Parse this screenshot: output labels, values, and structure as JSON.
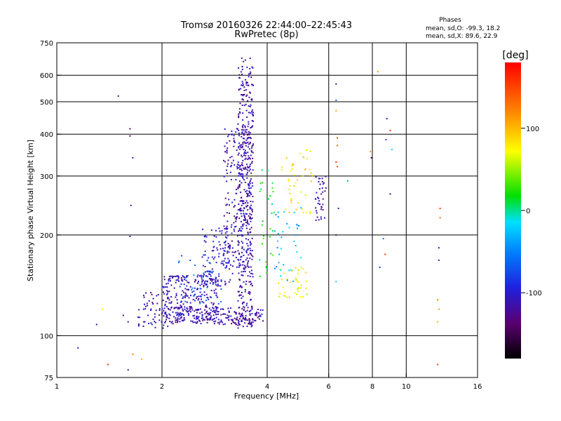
{
  "chart_data": {
    "type": "scatter",
    "title": "Tromsø 20160326 22:44:00–22:45:43",
    "subtitle": "RwPretec (8p)",
    "xlabel": "Frequency [MHz]",
    "ylabel": "Stationary phase Virtual Height [km]",
    "x_scale": "log2",
    "y_scale": "log",
    "xlim": [
      1,
      16
    ],
    "ylim": [
      75,
      750
    ],
    "grid": true,
    "x_ticks": [
      1,
      2,
      4,
      6,
      8,
      10,
      16
    ],
    "x_tick_labels": [
      "1",
      "2",
      "4",
      "6",
      "8",
      "10",
      "16"
    ],
    "y_ticks": [
      75,
      100,
      200,
      300,
      400,
      500,
      600,
      750
    ],
    "y_tick_labels": [
      "75",
      "100",
      "200",
      "300",
      "400",
      "500",
      "600",
      "750"
    ],
    "stats": {
      "heading": "Phases",
      "line1": "mean, sd,O: -99.3, 18.2",
      "line2": "mean, sd,X: 89.6, 22.9"
    },
    "colorbar": {
      "label": "[deg]",
      "range": [
        -180,
        180
      ],
      "ticks": [
        100,
        0,
        -100
      ],
      "tick_labels": [
        "100",
        "0",
        "-100"
      ]
    },
    "bands": [
      {
        "x": [
          3.3,
          3.65
        ],
        "y": [
          105,
          680
        ],
        "phase": -115,
        "n": 420
      },
      {
        "x": [
          3.0,
          3.6
        ],
        "y": [
          160,
          420
        ],
        "phase": -112,
        "n": 200
      },
      {
        "x": [
          2.6,
          3.2
        ],
        "y": [
          140,
          210
        ],
        "phase": -105,
        "n": 110
      },
      {
        "x": [
          2.0,
          2.9
        ],
        "y": [
          112,
          152
        ],
        "phase": -110,
        "n": 240
      },
      {
        "x": [
          2.0,
          3.9
        ],
        "y": [
          108,
          122
        ],
        "phase": -118,
        "n": 220
      },
      {
        "x": [
          1.7,
          2.1
        ],
        "y": [
          105,
          135
        ],
        "phase": -112,
        "n": 60
      },
      {
        "x": [
          2.2,
          3.0
        ],
        "y": [
          120,
          175
        ],
        "phase": -60,
        "n": 35
      },
      {
        "x": [
          4.3,
          5.2
        ],
        "y": [
          130,
          160
        ],
        "phase": 75,
        "n": 40
      },
      {
        "x": [
          4.4,
          5.4
        ],
        "y": [
          230,
          370
        ],
        "phase": 80,
        "n": 45
      },
      {
        "x": [
          4.2,
          5.0
        ],
        "y": [
          140,
          250
        ],
        "phase": -30,
        "n": 35
      },
      {
        "x": [
          5.5,
          5.9
        ],
        "y": [
          220,
          300
        ],
        "phase": -108,
        "n": 40
      },
      {
        "x": [
          3.8,
          4.2
        ],
        "y": [
          150,
          330
        ],
        "phase": 20,
        "n": 30
      }
    ],
    "points": [
      {
        "x": 1.15,
        "y": 92,
        "phase": -110
      },
      {
        "x": 1.3,
        "y": 108,
        "phase": -118
      },
      {
        "x": 1.35,
        "y": 120,
        "phase": 70
      },
      {
        "x": 1.4,
        "y": 82,
        "phase": 160
      },
      {
        "x": 1.5,
        "y": 520,
        "phase": -115
      },
      {
        "x": 1.55,
        "y": 115,
        "phase": -118
      },
      {
        "x": 1.6,
        "y": 79,
        "phase": -115
      },
      {
        "x": 1.62,
        "y": 415,
        "phase": -135
      },
      {
        "x": 1.62,
        "y": 395,
        "phase": -140
      },
      {
        "x": 1.63,
        "y": 245,
        "phase": -118
      },
      {
        "x": 1.65,
        "y": 340,
        "phase": -112
      },
      {
        "x": 1.62,
        "y": 198,
        "phase": -130
      },
      {
        "x": 1.6,
        "y": 110,
        "phase": -118
      },
      {
        "x": 1.65,
        "y": 88,
        "phase": 120
      },
      {
        "x": 1.75,
        "y": 85,
        "phase": 100
      },
      {
        "x": 6.3,
        "y": 565,
        "phase": -115
      },
      {
        "x": 6.3,
        "y": 505,
        "phase": -60
      },
      {
        "x": 6.3,
        "y": 470,
        "phase": 110
      },
      {
        "x": 6.35,
        "y": 390,
        "phase": 150
      },
      {
        "x": 6.35,
        "y": 370,
        "phase": 140
      },
      {
        "x": 6.3,
        "y": 330,
        "phase": 160
      },
      {
        "x": 6.35,
        "y": 320,
        "phase": 150
      },
      {
        "x": 6.4,
        "y": 240,
        "phase": -100
      },
      {
        "x": 6.3,
        "y": 200,
        "phase": -135
      },
      {
        "x": 6.3,
        "y": 145,
        "phase": -20
      },
      {
        "x": 6.8,
        "y": 290,
        "phase": -40
      },
      {
        "x": 7.9,
        "y": 355,
        "phase": 120
      },
      {
        "x": 7.95,
        "y": 340,
        "phase": -150
      },
      {
        "x": 8.3,
        "y": 615,
        "phase": 110
      },
      {
        "x": 8.8,
        "y": 445,
        "phase": -120
      },
      {
        "x": 8.75,
        "y": 385,
        "phase": -80
      },
      {
        "x": 9.0,
        "y": 410,
        "phase": 160
      },
      {
        "x": 9.1,
        "y": 360,
        "phase": -20
      },
      {
        "x": 9.0,
        "y": 265,
        "phase": -130
      },
      {
        "x": 8.6,
        "y": 195,
        "phase": -60
      },
      {
        "x": 8.4,
        "y": 160,
        "phase": -80
      },
      {
        "x": 8.7,
        "y": 175,
        "phase": 150
      },
      {
        "x": 12.5,
        "y": 240,
        "phase": 150
      },
      {
        "x": 12.5,
        "y": 225,
        "phase": 130
      },
      {
        "x": 12.4,
        "y": 183,
        "phase": -120
      },
      {
        "x": 12.4,
        "y": 168,
        "phase": -110
      },
      {
        "x": 12.3,
        "y": 128,
        "phase": 120
      },
      {
        "x": 12.4,
        "y": 120,
        "phase": 110
      },
      {
        "x": 12.3,
        "y": 110,
        "phase": 100
      },
      {
        "x": 12.3,
        "y": 82,
        "phase": 150
      }
    ]
  }
}
